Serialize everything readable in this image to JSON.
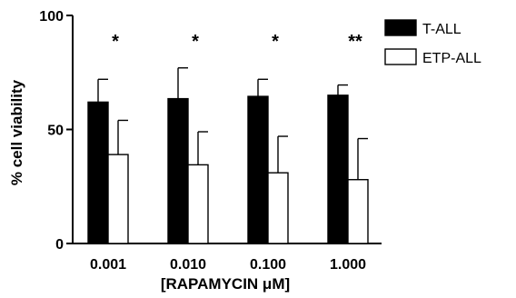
{
  "chart_data": {
    "type": "bar",
    "xlabel": "[RAPAMYCIN μM]",
    "ylabel": "% cell viability",
    "ylim": [
      0,
      100
    ],
    "yticks": [
      0,
      50,
      100
    ],
    "categories": [
      "0.001",
      "0.010",
      "0.100",
      "1.000"
    ],
    "series": [
      {
        "name": "T-ALL",
        "fill": "#000000",
        "values": [
          62,
          63.5,
          64.5,
          65
        ],
        "errors": [
          10,
          13.5,
          7.5,
          4.5
        ]
      },
      {
        "name": "ETP-ALL",
        "fill": "#ffffff",
        "values": [
          39,
          34.5,
          31,
          28
        ],
        "errors": [
          15,
          14.5,
          16,
          18
        ]
      }
    ],
    "annotations": [
      "*",
      "*",
      "*",
      "**"
    ],
    "legend_position": "top-right",
    "grid": false
  }
}
